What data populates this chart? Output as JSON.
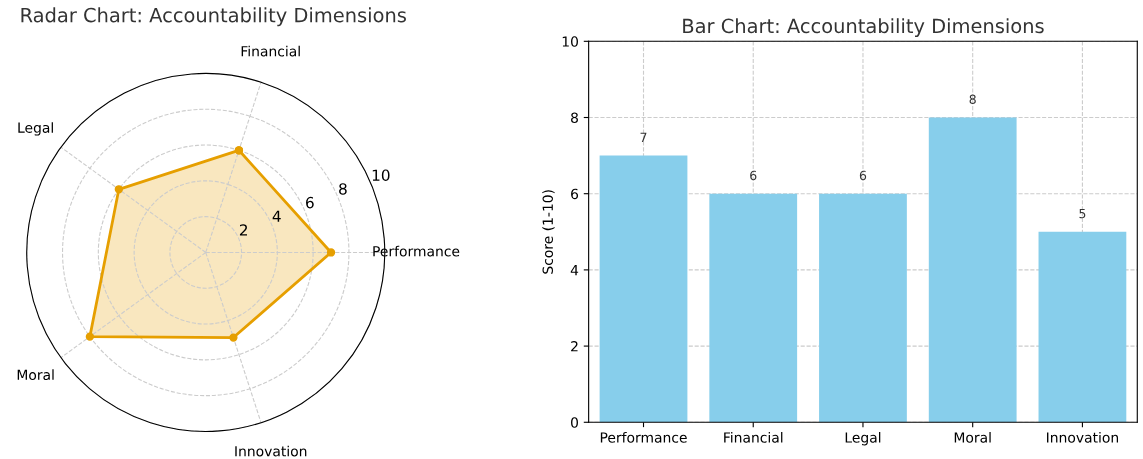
{
  "chart_data": [
    {
      "type": "radar",
      "title": "Radar Chart: Accountability Dimensions",
      "categories": [
        "Financial",
        "Performance",
        "Innovation",
        "Moral",
        "Legal"
      ],
      "series": [
        {
          "color": "#e69f00",
          "values": [
            6,
            7,
            5,
            8,
            6
          ]
        }
      ],
      "ylim": [
        0,
        10
      ],
      "yticks": [
        2,
        4,
        6,
        8,
        10
      ],
      "grid": true,
      "marker": "circle",
      "line_style": "solid"
    },
    {
      "type": "bar",
      "title": "Bar Chart: Accountability Dimensions",
      "ylabel": "Score (1-10)",
      "categories": [
        "Performance",
        "Financial",
        "Legal",
        "Moral",
        "Innovation"
      ],
      "values": [
        7,
        6,
        6,
        8,
        5
      ],
      "color": "#87ceeb",
      "ylim": [
        0,
        10
      ],
      "yticks": [
        0,
        2,
        4,
        6,
        8,
        10
      ],
      "grid": true,
      "data_labels": true
    }
  ]
}
